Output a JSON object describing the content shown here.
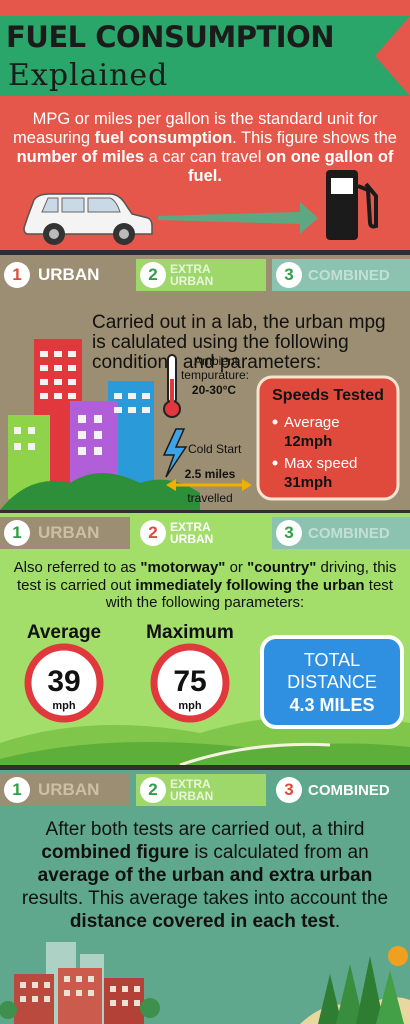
{
  "header": {
    "title_line1": "FUEL CONSUMPTION",
    "title_line2": "Explained",
    "intro_1": "MPG or miles per gallon is the standard unit for measuring ",
    "intro_2": "fuel consumption",
    "intro_3": ".  This figure shows the ",
    "intro_4": "number of miles",
    "intro_5": " a car can travel ",
    "intro_6": "on one gallon of fuel."
  },
  "tabs": {
    "urban": {
      "num": "1",
      "label": "URBAN"
    },
    "extra": {
      "num": "2",
      "label_line1": "EXTRA",
      "label_line2": "URBAN"
    },
    "combined": {
      "num": "3",
      "label": "COMBINED"
    }
  },
  "urban_section": {
    "description": "Carried out in a lab, the urban mpg is calulated using the following conditions and parameters:",
    "ambient_label_1": "Ambient",
    "ambient_label_2": "tempurature:",
    "ambient_value": "20-30°C",
    "cold_start": "Cold Start",
    "distance_value": "2.5 miles",
    "distance_label": "travelled",
    "speeds_title": "Speeds Tested",
    "speeds": [
      {
        "label": "Average",
        "value": "12mph"
      },
      {
        "label": "Max speed",
        "value": "31mph"
      }
    ]
  },
  "extra_section": {
    "desc_1": "Also referred to as ",
    "desc_2": "\"motorway\"",
    "desc_3": " or ",
    "desc_4": "\"country\"",
    "desc_5": " driving, this test is carried out ",
    "desc_6": "immediately following the urban",
    "desc_7": " test with the following parameters:",
    "average_label": "Average",
    "average_value": "39",
    "maximum_label": "Maximum",
    "maximum_value": "75",
    "unit": "mph",
    "total_line1": "TOTAL",
    "total_line2": "DISTANCE",
    "total_line3": "4.3 MILES"
  },
  "combined_section": {
    "desc_1": "After both tests are carried out, a third ",
    "desc_2": "combined figure",
    "desc_3": " is calculated from an ",
    "desc_4": "average of the urban and extra urban",
    "desc_5": " results. This average takes into account the ",
    "desc_6": "distance covered in each test",
    "desc_7": "."
  },
  "colors": {
    "header_bg": "#e5574a",
    "ribbon": "#2aa66a",
    "urban_bg": "#9c8e73",
    "extra_bg": "#a4de6a",
    "combined_bg": "#5fa88d",
    "tab_red": "#e04a3c",
    "tab_green": "#2e9f45"
  }
}
